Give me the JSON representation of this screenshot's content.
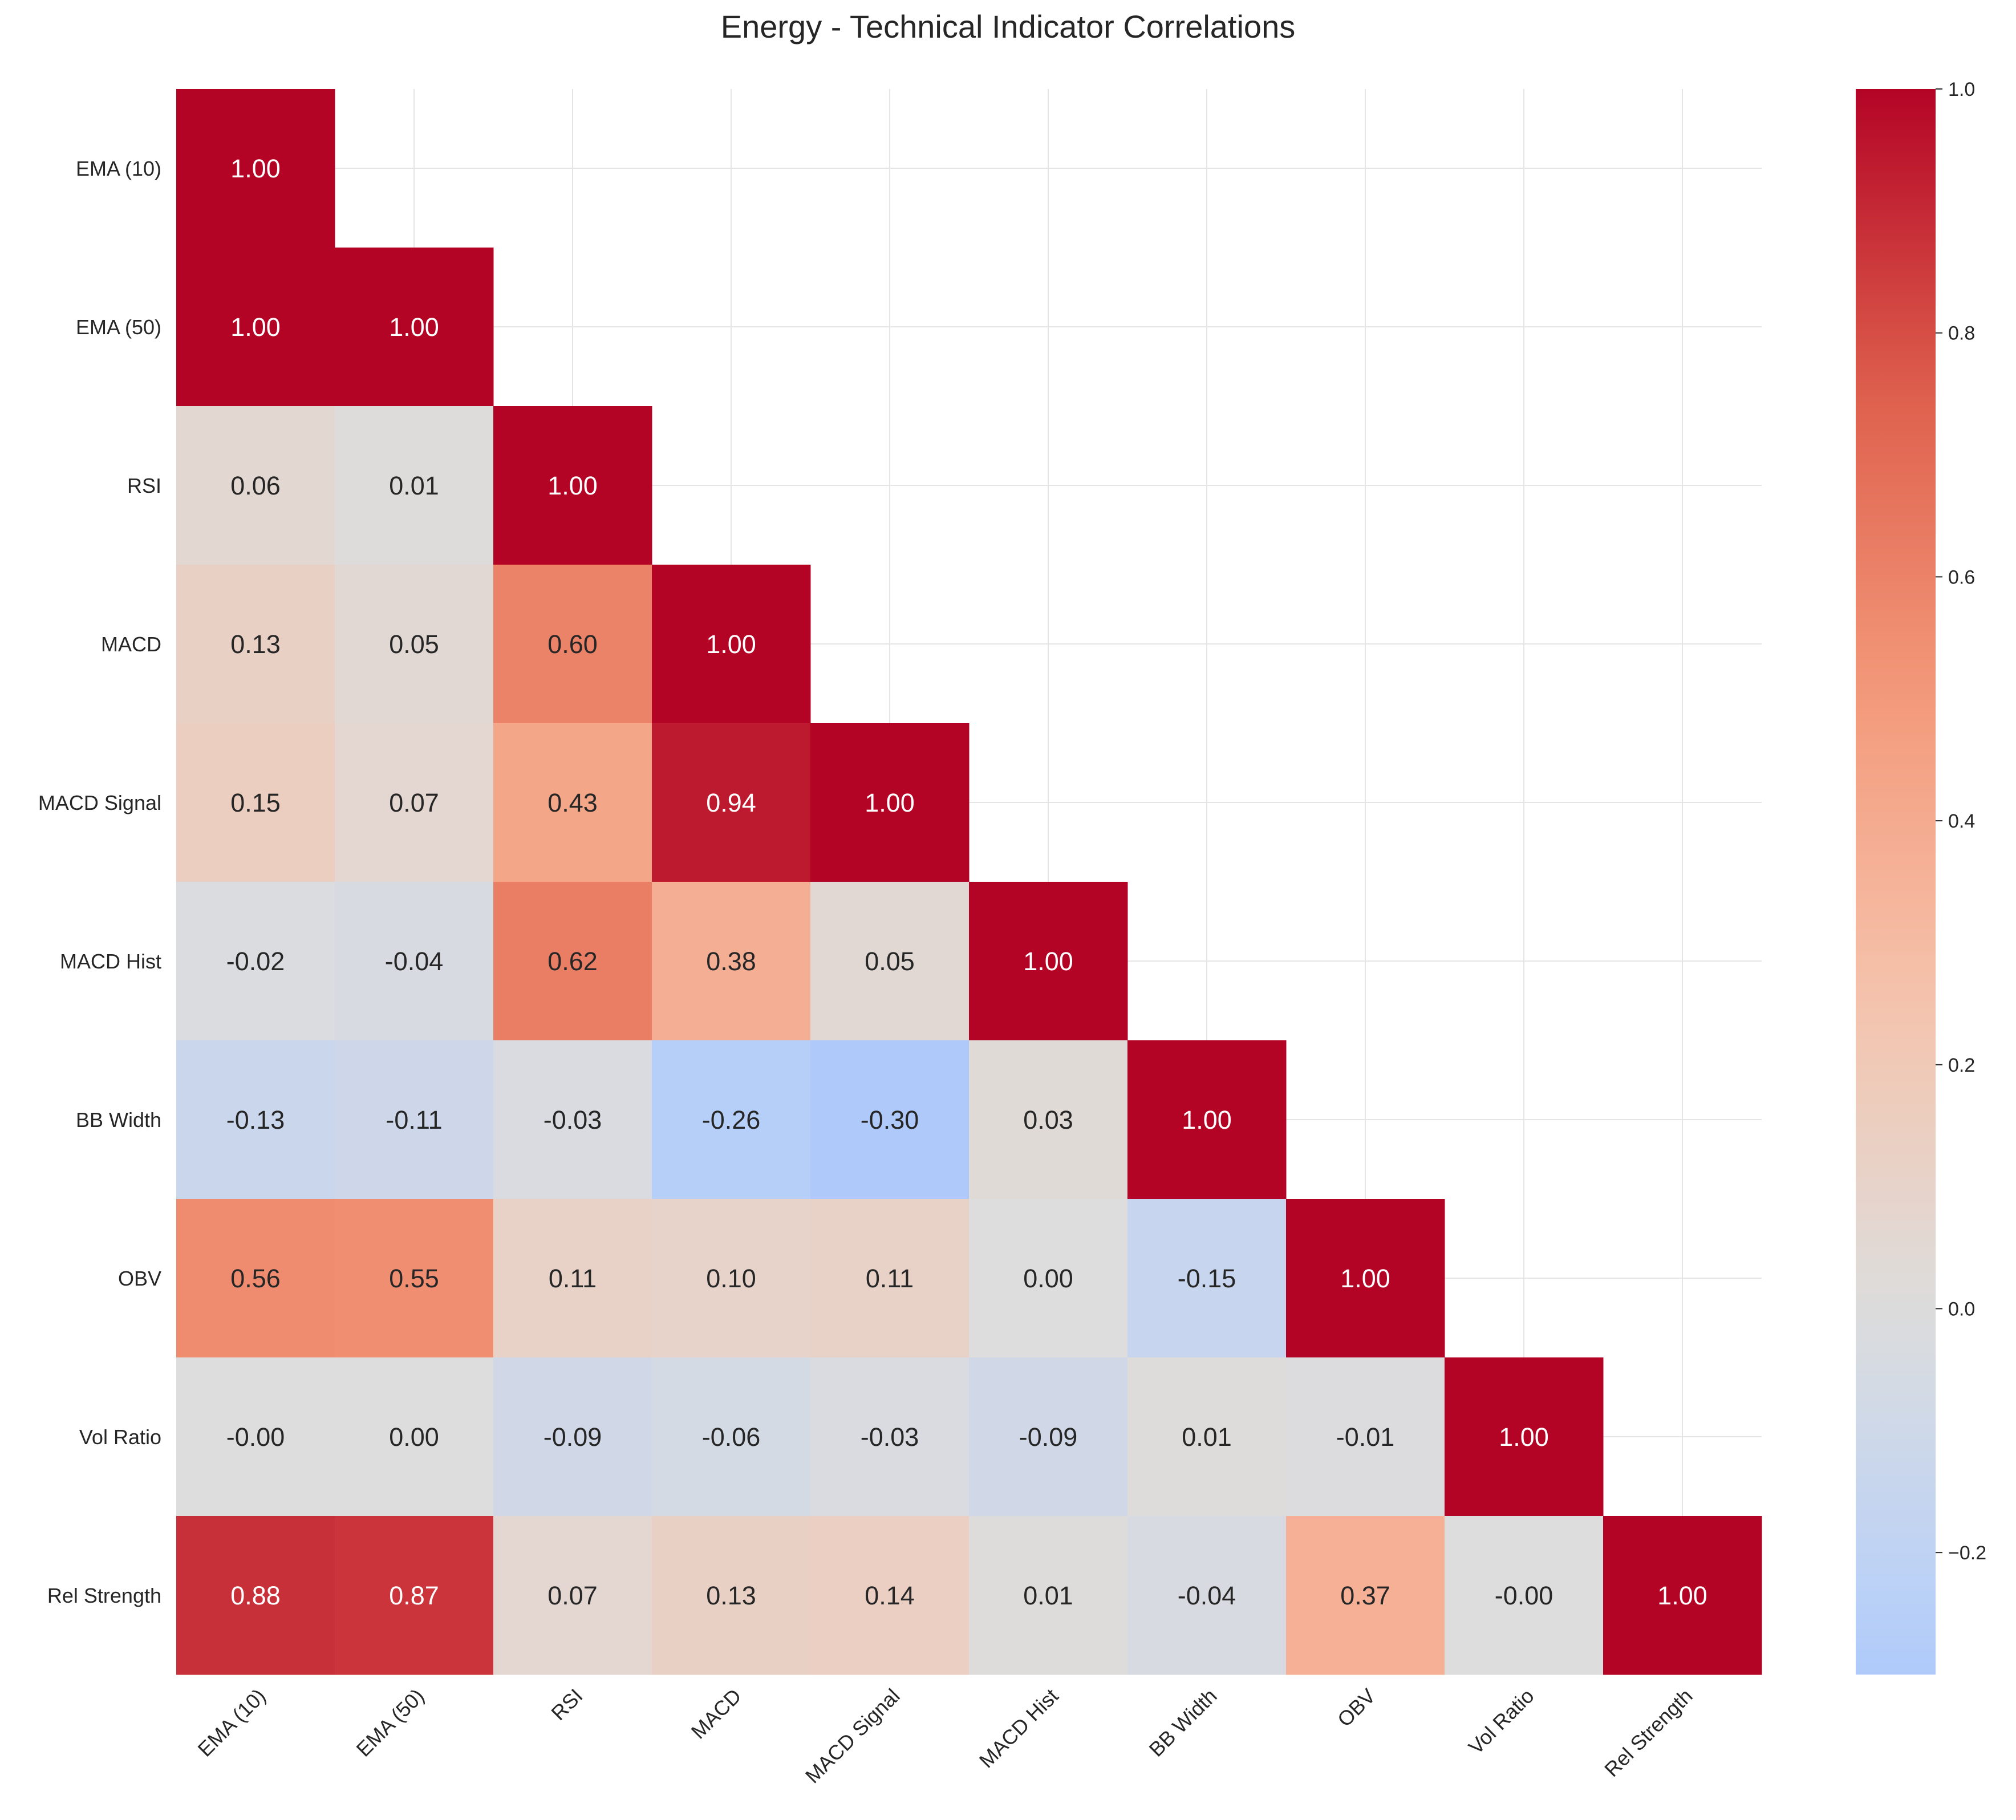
{
  "chart_data": {
    "type": "heatmap",
    "title": "Energy - Technical Indicator Correlations",
    "xlabel": "",
    "ylabel": "",
    "grid": true,
    "mask": "upper-triangle",
    "colormap": "coolwarm",
    "color_range": [
      -0.3,
      1.0
    ],
    "labels": [
      "EMA (10)",
      "EMA (50)",
      "RSI",
      "MACD",
      "MACD Signal",
      "MACD Hist",
      "BB Width",
      "OBV",
      "Vol Ratio",
      "Rel Strength"
    ],
    "values": [
      [
        1.0
      ],
      [
        1.0,
        1.0
      ],
      [
        0.06,
        0.01,
        1.0
      ],
      [
        0.13,
        0.05,
        0.6,
        1.0
      ],
      [
        0.15,
        0.07,
        0.43,
        0.94,
        1.0
      ],
      [
        -0.02,
        -0.04,
        0.62,
        0.38,
        0.05,
        1.0
      ],
      [
        -0.13,
        -0.11,
        -0.03,
        -0.26,
        -0.3,
        0.03,
        1.0
      ],
      [
        0.56,
        0.55,
        0.11,
        0.1,
        0.11,
        0.0,
        -0.15,
        1.0
      ],
      [
        -0.0,
        0.0,
        -0.09,
        -0.06,
        -0.03,
        -0.09,
        0.01,
        -0.01,
        1.0
      ],
      [
        0.88,
        0.87,
        0.07,
        0.13,
        0.14,
        0.01,
        -0.04,
        0.37,
        -0.0,
        1.0
      ]
    ],
    "colorbar_ticks": [
      "−0.2",
      "0.0",
      "0.2",
      "0.4",
      "0.6",
      "0.8",
      "1.0"
    ],
    "colorbar_tick_values": [
      -0.2,
      0.0,
      0.2,
      0.4,
      0.6,
      0.8,
      1.0
    ]
  }
}
